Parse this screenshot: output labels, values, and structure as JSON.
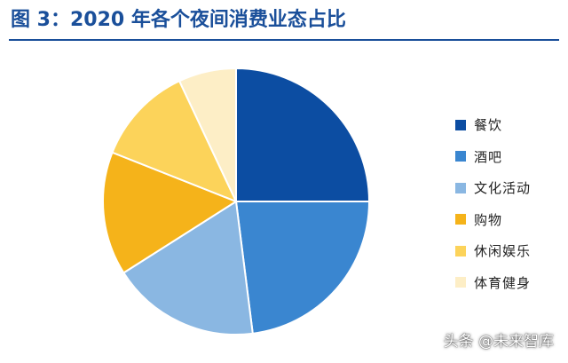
{
  "chart_data": {
    "type": "pie",
    "title": "图 3：2020 年各个夜间消费业态占比",
    "categories": [
      "餐饮",
      "酒吧",
      "文化活动",
      "购物",
      "休闲娱乐",
      "体育健身"
    ],
    "values": [
      25,
      23,
      18,
      15,
      12,
      7
    ],
    "unit": "%",
    "colors": [
      "#0c4da2",
      "#3a86d0",
      "#8ab7e2",
      "#f5b31a",
      "#fcd35a",
      "#fdeec6"
    ],
    "start_angle_deg": 0,
    "direction": "clockwise",
    "legend_position": "right"
  },
  "watermark": "头条 @未来智库"
}
